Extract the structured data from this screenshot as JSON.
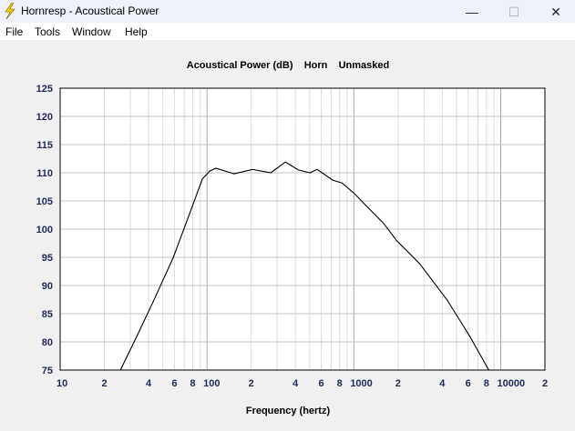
{
  "window": {
    "title": "Hornresp - Acoustical Power",
    "minimize": "—",
    "maximize": "☐",
    "close": "✕"
  },
  "menu": [
    "File",
    "Tools",
    "Window",
    "Help"
  ],
  "chart_data": {
    "type": "line",
    "title": "Acoustical Power (dB)    Horn    Unmasked",
    "xlabel": "Frequency (hertz)",
    "ylabel": "",
    "xscale": "log",
    "xlim": [
      10,
      20000
    ],
    "ylim": [
      75,
      125
    ],
    "yticks": [
      75,
      80,
      85,
      90,
      95,
      100,
      105,
      110,
      115,
      120,
      125
    ],
    "xticks": [
      {
        "v": 10,
        "l": "10"
      },
      {
        "v": 20,
        "l": "2"
      },
      {
        "v": 40,
        "l": "4"
      },
      {
        "v": 60,
        "l": "6"
      },
      {
        "v": 80,
        "l": "8"
      },
      {
        "v": 100,
        "l": "100"
      },
      {
        "v": 200,
        "l": "2"
      },
      {
        "v": 400,
        "l": "4"
      },
      {
        "v": 600,
        "l": "6"
      },
      {
        "v": 800,
        "l": "8"
      },
      {
        "v": 1000,
        "l": "1000"
      },
      {
        "v": 2000,
        "l": "2"
      },
      {
        "v": 4000,
        "l": "4"
      },
      {
        "v": 6000,
        "l": "6"
      },
      {
        "v": 8000,
        "l": "8"
      },
      {
        "v": 10000,
        "l": "10000"
      },
      {
        "v": 20000,
        "l": "2"
      }
    ],
    "grid": true,
    "line_color": "#000000",
    "x": [
      25.7,
      33.3,
      44,
      59,
      78,
      93,
      104.6,
      115,
      153,
      204,
      272,
      342,
      418,
      502,
      562,
      719,
      830,
      1000,
      1188,
      1585,
      1950,
      2800,
      4300,
      6150,
      8300
    ],
    "y": [
      75,
      81,
      87.7,
      95,
      103.5,
      108.9,
      110.3,
      110.8,
      109.8,
      110.6,
      110,
      111.9,
      110.5,
      110,
      110.6,
      108.7,
      108.2,
      106.4,
      104.4,
      101.1,
      98,
      93.9,
      87.5,
      81,
      75
    ]
  }
}
